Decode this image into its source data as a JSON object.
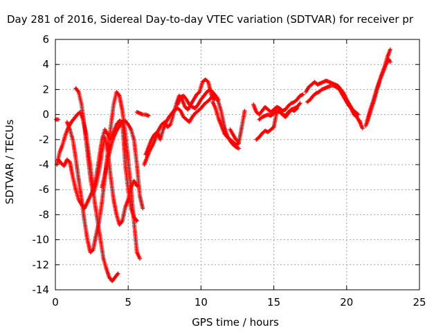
{
  "chart_data": {
    "type": "scatter",
    "title": "Day 281 of 2016, Sidereal Day-to-day VTEC variation (SDTVAR) for receiver pr",
    "xlabel": "GPS time / hours",
    "ylabel": "SDTVAR / TECUs",
    "xlim": [
      0,
      25
    ],
    "ylim": [
      -14,
      6
    ],
    "xticks": [
      "0",
      "5",
      "10",
      "15",
      "20",
      "25"
    ],
    "yticks": [
      "-14",
      "-12",
      "-10",
      "-8",
      "-6",
      "-4",
      "-2",
      "0",
      "2",
      "4",
      "6"
    ],
    "grid": true,
    "marker": "+",
    "color": "#ff0000",
    "series": [
      {
        "x": [
          0.05,
          0.2
        ],
        "y": [
          -0.4,
          -0.4
        ]
      },
      {
        "x": [
          0.1,
          0.3,
          0.5,
          0.7,
          0.9,
          1.1,
          1.3,
          1.5,
          1.7,
          1.9,
          2.1,
          2.3,
          2.5,
          2.7,
          2.9,
          3.1,
          3.3,
          3.5,
          3.7,
          3.9,
          4.1,
          4.3
        ],
        "y": [
          -4.0,
          -3.0,
          -2.4,
          -1.6,
          -1.0,
          -0.6,
          -0.3,
          0.0,
          0.2,
          -0.4,
          -1.5,
          -3.2,
          -5.0,
          -7.0,
          -8.5,
          -10.0,
          -11.5,
          -12.3,
          -13.0,
          -13.3,
          -13.0,
          -12.7
        ]
      },
      {
        "x": [
          0.2,
          0.4,
          0.6,
          0.8,
          1.0,
          1.2,
          1.4,
          1.6,
          1.8,
          2.0,
          2.2,
          2.4,
          2.6,
          2.8,
          3.0,
          3.2,
          3.4,
          3.6,
          3.8,
          4.0,
          4.2,
          4.4,
          4.6,
          4.8,
          5.0,
          5.2,
          5.4,
          5.6
        ],
        "y": [
          -3.6,
          -3.9,
          -4.1,
          -3.6,
          -3.8,
          -5.0,
          -6.0,
          -6.8,
          -7.2,
          -7.5,
          -7.0,
          -6.5,
          -6.0,
          -5.0,
          -3.5,
          -2.0,
          -1.2,
          -1.6,
          -2.0,
          -1.4,
          -0.8,
          -0.5,
          -0.6,
          -4.0,
          -6.0,
          -7.5,
          -8.2,
          -8.5
        ]
      },
      {
        "x": [
          1.4,
          1.6,
          1.8,
          2.0,
          2.2,
          2.4,
          2.6,
          2.8,
          3.0,
          3.2,
          3.4,
          3.6,
          3.8,
          4.0,
          4.2,
          4.4,
          4.6,
          4.8,
          5.0,
          5.2,
          5.4,
          5.6
        ],
        "y": [
          2.1,
          1.8,
          0.8,
          -1.0,
          -3.0,
          -5.0,
          -6.4,
          -5.6,
          -4.5,
          -3.0,
          -1.8,
          -3.0,
          -5.0,
          -6.8,
          -8.0,
          -8.8,
          -8.5,
          -7.4,
          -6.8,
          -5.8,
          -5.3,
          -5.7
        ]
      },
      {
        "x": [
          0.8,
          1.0,
          1.2,
          1.4,
          1.6,
          1.8,
          2.0,
          2.2,
          2.4,
          2.6,
          2.8,
          3.0,
          3.2,
          3.4,
          3.6,
          3.8,
          4.0,
          4.2,
          4.4,
          4.6,
          4.8,
          5.0,
          5.2,
          5.4,
          5.6,
          5.8
        ],
        "y": [
          -0.6,
          -1.2,
          -2.0,
          -3.5,
          -5.2,
          -6.8,
          -8.5,
          -10.0,
          -11.0,
          -10.8,
          -9.6,
          -8.6,
          -7.0,
          -5.0,
          -3.0,
          -1.0,
          0.8,
          1.8,
          1.5,
          0.3,
          -1.5,
          -3.6,
          -6.0,
          -8.6,
          -11.0,
          -11.5
        ]
      },
      {
        "x": [
          3.2,
          3.4,
          3.6,
          3.8,
          4.0,
          4.2,
          4.4,
          4.6,
          4.8,
          5.0,
          5.2,
          5.4,
          5.6,
          5.8,
          6.0
        ],
        "y": [
          -5.8,
          -4.8,
          -3.6,
          -2.6,
          -1.8,
          -1.3,
          -0.9,
          -0.6,
          -0.5,
          -0.8,
          -1.2,
          -2.0,
          -4.0,
          -6.5,
          -7.5
        ]
      },
      {
        "x": [
          5.6,
          5.8,
          6.0,
          6.2,
          6.4
        ],
        "y": [
          0.2,
          0.1,
          0.0,
          0.0,
          -0.1
        ]
      },
      {
        "x": [
          6.1,
          6.3,
          6.5,
          6.7,
          6.9,
          7.1,
          7.3,
          7.5,
          7.7,
          7.9,
          8.1,
          8.3,
          8.5,
          8.7,
          8.9,
          9.1,
          9.3,
          9.5,
          9.7,
          9.9,
          10.1,
          10.3,
          10.5,
          10.7,
          10.9,
          11.1
        ],
        "y": [
          -4.0,
          -3.4,
          -2.8,
          -2.4,
          -1.8,
          -1.2,
          -0.8,
          -0.6,
          -1.0,
          -0.8,
          0.0,
          0.8,
          1.5,
          1.2,
          0.6,
          0.4,
          0.8,
          1.2,
          1.6,
          1.8,
          2.6,
          2.8,
          2.6,
          1.6,
          1.2,
          1.4
        ]
      },
      {
        "x": [
          6.2,
          6.4,
          6.6,
          6.8,
          7.0,
          7.2,
          7.4,
          7.6,
          7.8,
          8.0,
          8.2,
          8.4,
          8.6,
          8.8,
          9.0,
          9.2,
          9.4,
          9.6,
          9.8,
          10.0,
          10.2,
          10.4,
          10.6,
          10.8,
          11.0,
          11.2
        ],
        "y": [
          -3.2,
          -2.6,
          -2.0,
          -1.6,
          -1.4,
          -2.0,
          -1.2,
          -0.6,
          -0.2,
          0.1,
          0.4,
          0.5,
          0.3,
          -0.2,
          -0.4,
          -0.6,
          -0.2,
          0.1,
          0.3,
          0.5,
          0.8,
          1.0,
          1.2,
          1.5,
          1.4,
          1.2
        ]
      },
      {
        "x": [
          8.4,
          8.6,
          8.8,
          9.0,
          9.2,
          9.4,
          9.6,
          9.8,
          10.0,
          10.2,
          10.4,
          10.6,
          10.8,
          11.0,
          11.2,
          11.4,
          11.6,
          11.8,
          12.0,
          12.2,
          12.4,
          12.6
        ],
        "y": [
          0.8,
          1.4,
          1.5,
          1.2,
          0.8,
          0.6,
          0.5,
          0.8,
          1.2,
          1.5,
          1.8,
          2.0,
          1.8,
          1.5,
          1.0,
          0.2,
          -1.0,
          -1.7,
          -2.1,
          -2.4,
          -2.6,
          -2.7
        ]
      },
      {
        "x": [
          10.8,
          11.0,
          11.2,
          11.4,
          11.6,
          11.8,
          12.0,
          12.2,
          12.4,
          12.6
        ],
        "y": [
          1.0,
          0.5,
          -0.3,
          -0.9,
          -1.5,
          -1.8,
          -2.0,
          -2.2,
          -2.4,
          -2.3
        ]
      },
      {
        "x": [
          12.0,
          12.2,
          12.4,
          12.6,
          12.8,
          13.0
        ],
        "y": [
          -1.2,
          -1.6,
          -2.0,
          -2.2,
          -1.0,
          0.3
        ]
      },
      {
        "x": [
          13.6,
          13.8,
          14.0,
          14.2,
          14.4,
          14.6,
          14.8,
          15.0,
          15.2,
          15.4,
          15.6,
          15.8,
          16.0,
          16.2,
          16.4,
          16.6,
          16.8,
          17.0
        ],
        "y": [
          0.8,
          0.2,
          0.0,
          0.3,
          0.6,
          0.4,
          0.2,
          0.4,
          0.6,
          0.5,
          0.3,
          0.4,
          0.7,
          0.9,
          1.0,
          1.2,
          1.5,
          1.6
        ]
      },
      {
        "x": [
          13.8,
          14.0,
          14.2,
          14.4,
          14.6,
          14.8,
          15.0,
          15.2,
          15.4,
          15.6,
          15.8,
          16.0,
          16.2,
          16.4,
          16.6,
          16.8
        ],
        "y": [
          -2.0,
          -1.8,
          -1.5,
          -1.3,
          -1.4,
          -1.2,
          -1.0,
          0.2,
          0.3,
          0.0,
          -0.2,
          0.1,
          0.4,
          0.5,
          0.6,
          0.9
        ]
      },
      {
        "x": [
          14.0,
          14.2,
          14.4,
          14.6,
          14.8,
          15.0,
          15.2,
          15.4,
          15.6,
          15.8,
          16.0,
          16.2,
          16.4,
          16.6
        ],
        "y": [
          -0.4,
          -0.2,
          -0.1,
          0.0,
          -0.1,
          0.1,
          0.3,
          0.2,
          0.0,
          -0.1,
          0.2,
          0.4,
          0.3,
          0.5
        ]
      },
      {
        "x": [
          17.2,
          17.4,
          17.6,
          17.8,
          18.0,
          18.2,
          18.4,
          18.6,
          18.8,
          19.0,
          19.2,
          19.4,
          19.6,
          19.8,
          20.0,
          20.2,
          20.4,
          20.6,
          20.8
        ],
        "y": [
          1.8,
          2.2,
          2.4,
          2.6,
          2.4,
          2.5,
          2.6,
          2.7,
          2.6,
          2.5,
          2.4,
          2.3,
          2.0,
          1.7,
          1.2,
          0.8,
          0.4,
          0.2,
          0.0
        ]
      },
      {
        "x": [
          17.3,
          17.5,
          17.7,
          17.9,
          18.1,
          18.3,
          18.5,
          18.7,
          18.9,
          19.1,
          19.3,
          19.5,
          19.7,
          19.9,
          20.1,
          20.3,
          20.5,
          20.7,
          20.9
        ],
        "y": [
          1.0,
          1.2,
          1.5,
          1.7,
          1.8,
          2.0,
          2.1,
          2.2,
          2.3,
          2.3,
          2.2,
          2.0,
          1.6,
          1.2,
          0.8,
          0.5,
          0.0,
          -0.2,
          -0.6
        ]
      },
      {
        "x": [
          20.9,
          21.0,
          21.1
        ],
        "y": [
          -0.5,
          -0.9,
          -1.1
        ]
      },
      {
        "x": [
          21.4,
          21.6,
          21.8,
          22.0,
          22.2,
          22.4,
          22.6,
          22.8,
          23.0
        ],
        "y": [
          -0.5,
          0.3,
          1.0,
          1.8,
          2.5,
          3.2,
          3.8,
          4.6,
          5.2
        ]
      },
      {
        "x": [
          21.3,
          21.5,
          21.7,
          21.9,
          22.1,
          22.3,
          22.5,
          22.7,
          22.9,
          23.0
        ],
        "y": [
          -0.9,
          -0.3,
          0.5,
          1.2,
          2.0,
          2.8,
          3.4,
          4.0,
          4.4,
          4.2
        ]
      }
    ]
  }
}
